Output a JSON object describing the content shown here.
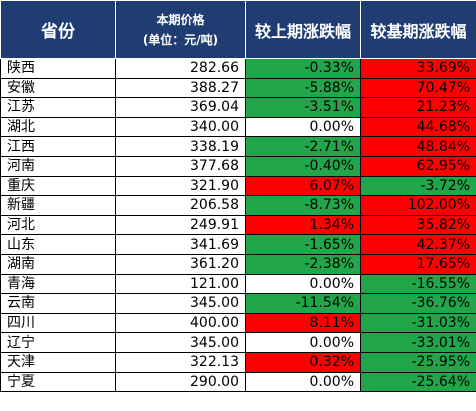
{
  "header": {
    "province": "省份",
    "price_line1": "本期价格",
    "price_line2": "(单位：元/吨)",
    "mom": "较上期涨跌幅",
    "yoy": "较基期涨跌幅"
  },
  "colors": {
    "header_bg": "#1f3c73",
    "increase": "#ff0000",
    "decrease": "#22a64a",
    "unchanged": "#ffffff"
  },
  "rows": [
    {
      "province": "陕西",
      "price": "282.66",
      "mom": "-0.33%",
      "yoy": "33.69%"
    },
    {
      "province": "安徽",
      "price": "388.27",
      "mom": "-5.88%",
      "yoy": "70.47%"
    },
    {
      "province": "江苏",
      "price": "369.04",
      "mom": "-3.51%",
      "yoy": "21.23%"
    },
    {
      "province": "湖北",
      "price": "340.00",
      "mom": "0.00%",
      "yoy": "44.68%"
    },
    {
      "province": "江西",
      "price": "338.19",
      "mom": "-2.71%",
      "yoy": "48.84%"
    },
    {
      "province": "河南",
      "price": "377.68",
      "mom": "-0.40%",
      "yoy": "62.95%"
    },
    {
      "province": "重庆",
      "price": "321.90",
      "mom": "6.07%",
      "yoy": "-3.72%"
    },
    {
      "province": "新疆",
      "price": "206.58",
      "mom": "-8.73%",
      "yoy": "102.00%"
    },
    {
      "province": "河北",
      "price": "249.91",
      "mom": "1.34%",
      "yoy": "35.82%"
    },
    {
      "province": "山东",
      "price": "341.69",
      "mom": "-1.65%",
      "yoy": "42.37%"
    },
    {
      "province": "湖南",
      "price": "361.20",
      "mom": "-2.38%",
      "yoy": "17.65%"
    },
    {
      "province": "青海",
      "price": "121.00",
      "mom": "0.00%",
      "yoy": "-16.55%"
    },
    {
      "province": "云南",
      "price": "345.00",
      "mom": "-11.54%",
      "yoy": "-36.76%"
    },
    {
      "province": "四川",
      "price": "400.00",
      "mom": "8.11%",
      "yoy": "-31.03%"
    },
    {
      "province": "辽宁",
      "price": "345.00",
      "mom": "0.00%",
      "yoy": "-33.01%"
    },
    {
      "province": "天津",
      "price": "322.13",
      "mom": "0.32%",
      "yoy": "-25.95%"
    },
    {
      "province": "宁夏",
      "price": "290.00",
      "mom": "0.00%",
      "yoy": "-25.64%"
    }
  ]
}
